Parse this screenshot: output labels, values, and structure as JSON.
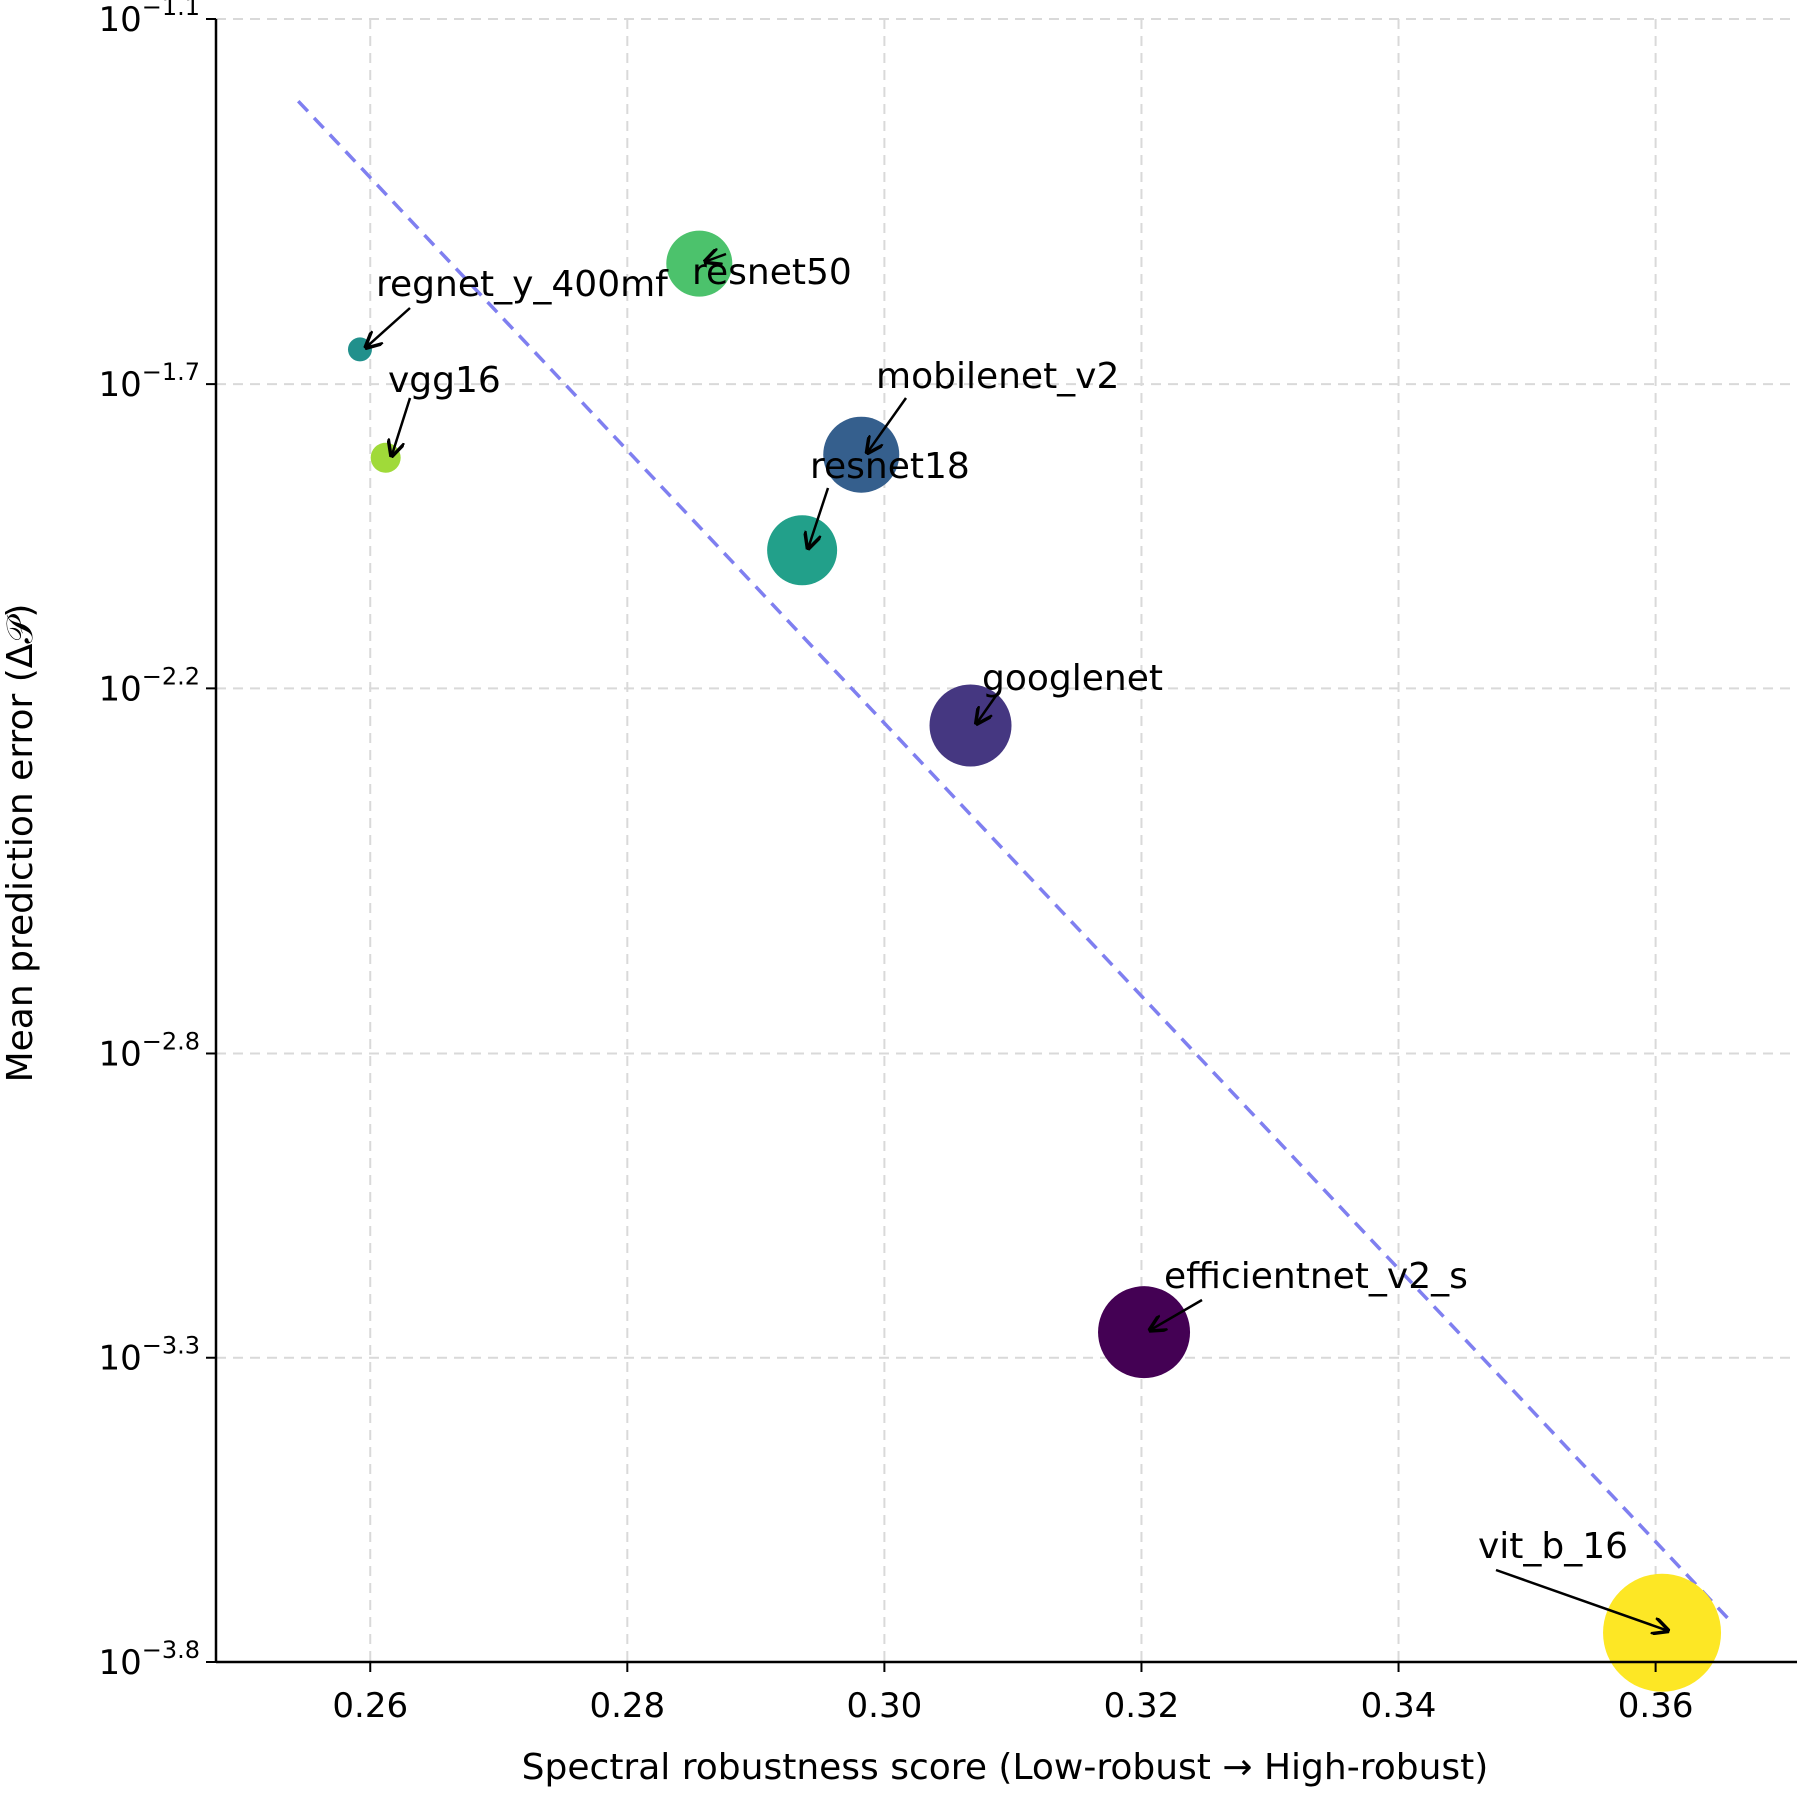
{
  "chart_data": {
    "type": "scatter",
    "xlabel": "Spectral robustness score (Low-robust → High-robust)",
    "ylabel": "Mean prediction error (Δ𝒫)",
    "xlim": [
      0.248,
      0.371
    ],
    "ylim_log10": [
      -3.8,
      -1.1
    ],
    "y_scale": "log",
    "grid": true,
    "x_ticks": [
      {
        "value": 0.26,
        "label": "0.26"
      },
      {
        "value": 0.28,
        "label": "0.28"
      },
      {
        "value": 0.3,
        "label": "0.30"
      },
      {
        "value": 0.32,
        "label": "0.32"
      },
      {
        "value": 0.34,
        "label": "0.34"
      },
      {
        "value": 0.36,
        "label": "0.36"
      }
    ],
    "y_ticks": [
      {
        "log10": -1.1,
        "base": "10",
        "exp": "−1.1"
      },
      {
        "log10": -1.7,
        "base": "10",
        "exp": "−1.7"
      },
      {
        "log10": -2.2,
        "base": "10",
        "exp": "−2.2"
      },
      {
        "log10": -2.8,
        "base": "10",
        "exp": "−2.8"
      },
      {
        "log10": -3.3,
        "base": "10",
        "exp": "−3.3"
      },
      {
        "log10": -3.8,
        "base": "10",
        "exp": "−3.8"
      }
    ],
    "points": [
      {
        "name": "regnet_y_400mf",
        "x": 0.2592,
        "log10_y": -1.643,
        "size": 24,
        "color": "#21908c"
      },
      {
        "name": "resnet50",
        "x": 0.2856,
        "log10_y": -1.502,
        "size": 66,
        "color": "#4cc26c"
      },
      {
        "name": "vgg16",
        "x": 0.2612,
        "log10_y": -1.821,
        "size": 30,
        "color": "#a0da39"
      },
      {
        "name": "mobilenet_v2",
        "x": 0.2982,
        "log10_y": -1.816,
        "size": 76,
        "color": "#355f8d"
      },
      {
        "name": "resnet18",
        "x": 0.2936,
        "log10_y": -1.973,
        "size": 70,
        "color": "#22a08a"
      },
      {
        "name": "googlenet",
        "x": 0.3067,
        "log10_y": -2.261,
        "size": 82,
        "color": "#453781"
      },
      {
        "name": "efficientnet_v2_s",
        "x": 0.3202,
        "log10_y": -3.258,
        "size": 92,
        "color": "#440154"
      },
      {
        "name": "vit_b_16",
        "x": 0.3605,
        "log10_y": -3.752,
        "size": 118,
        "color": "#fde725"
      }
    ],
    "trend_line": {
      "style": "dashed",
      "color": "#7f7ff0",
      "points": [
        {
          "x": 0.2544,
          "log10_y": -1.235
        },
        {
          "x": 0.3657,
          "log10_y": -3.73
        }
      ]
    }
  }
}
